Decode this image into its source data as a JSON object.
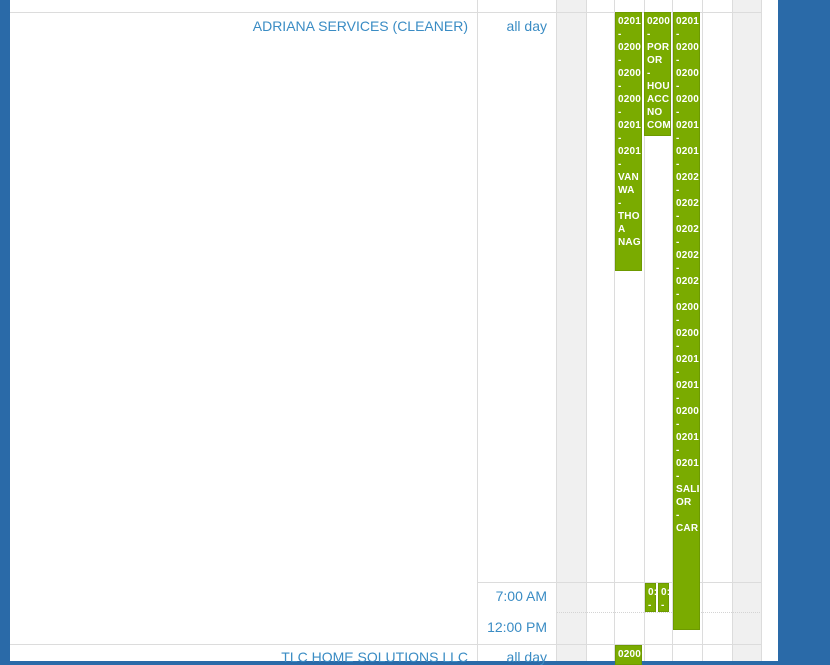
{
  "resources": [
    {
      "name": "ADRIANA SERVICES (CLEANER)",
      "allday": "all day"
    },
    {
      "name": "TLC HOME SOLUTIONS LLC",
      "allday": "all day"
    }
  ],
  "time_slots": [
    "7:00 AM",
    "12:00 PM"
  ],
  "colors": {
    "event": "#7aab00",
    "link": "#3a8cc4",
    "frame": "#2a6aa8"
  },
  "events": {
    "ev1": "0201\n-\n0200\n-\n0200\n-\n0200\n-\n0201\n-\n0201\n-\nVAN\nWA\n-\nTHO\nA\nNAG",
    "ev2": "0200\n-\nPOR\nOR\n-\nHOU\nACC\nNO\nCOM",
    "ev3": "0201\n-\n0200\n-\n0200\n-\n0200\n-\n0201\n-\n0201\n-\n0202\n-\n0202\n-\n0202\n-\n0202\n-\n0202\n-\n0200\n-\n0200\n-\n0201\n-\n0201\n-\n0200\n-\n0201\n-\n0201\n-\nSALI\nOR\n-\nCAR",
    "ev4": "0:\n-",
    "ev5": "0:\n-",
    "ev6": "0200"
  }
}
